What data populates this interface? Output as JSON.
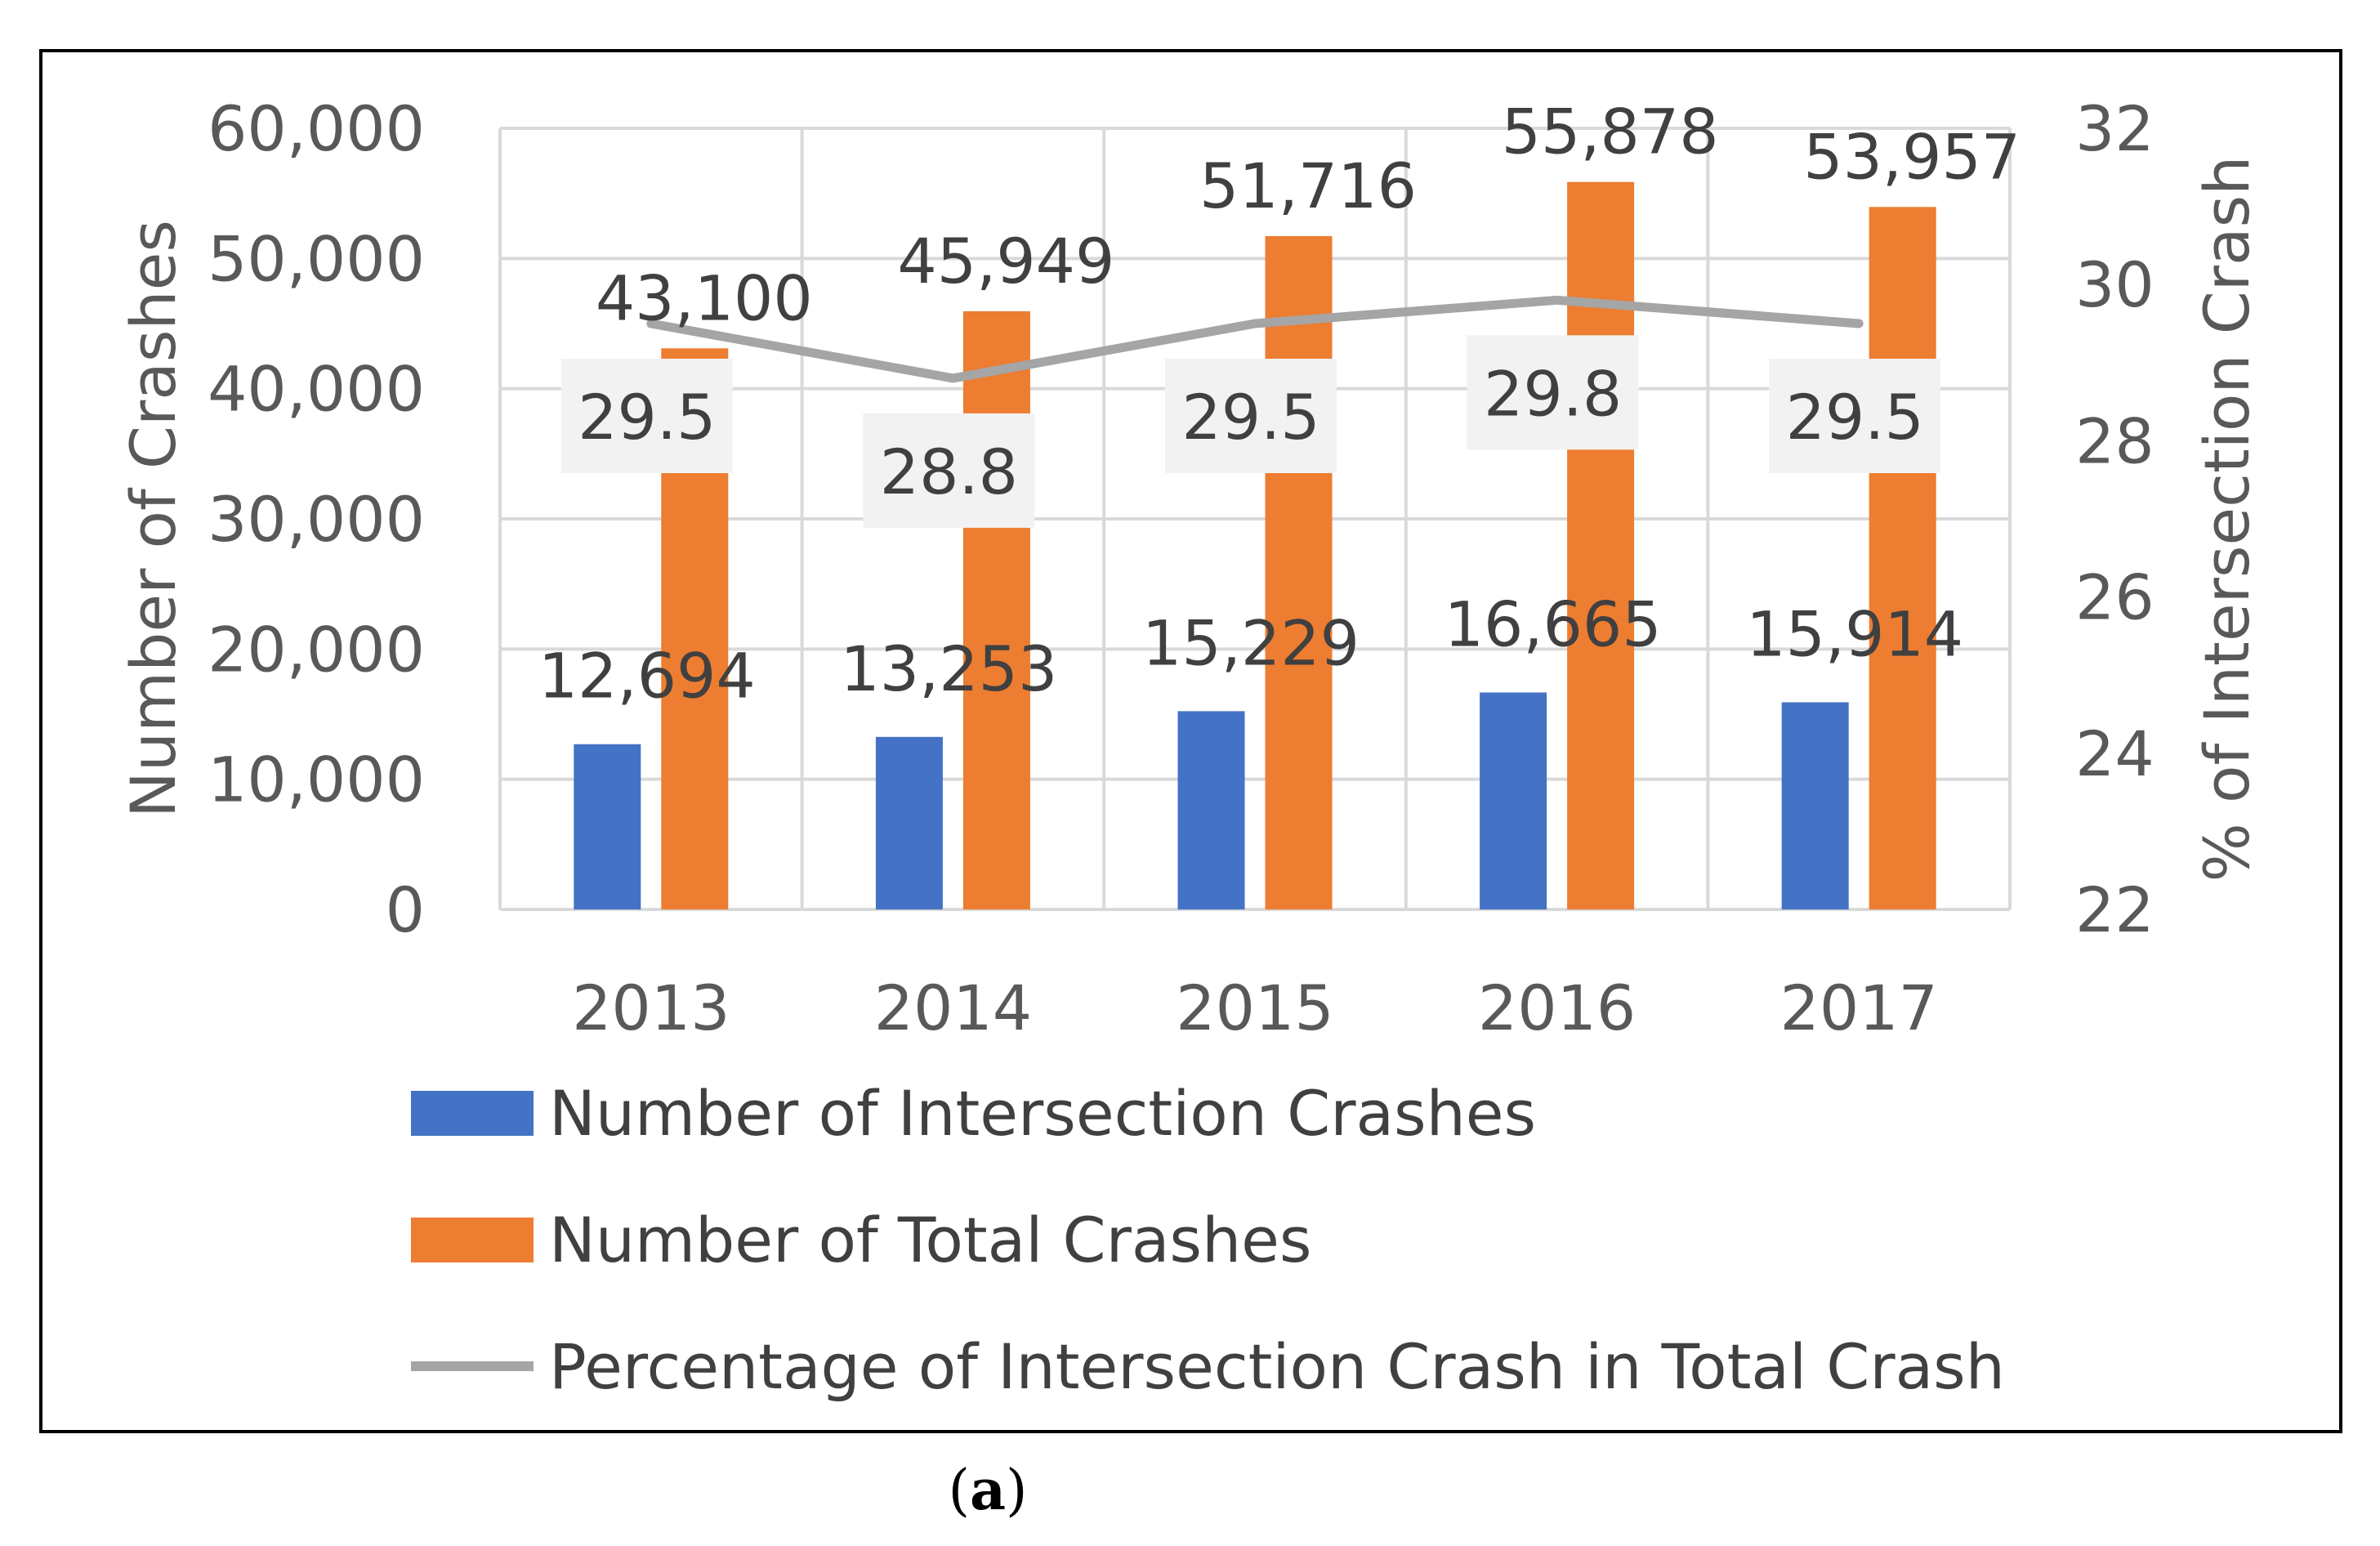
{
  "chart_data": {
    "type": "bar",
    "categories": [
      "2013",
      "2014",
      "2015",
      "2016",
      "2017"
    ],
    "series": [
      {
        "name": "Number of Intersection Crashes",
        "kind": "bar",
        "axis": "left",
        "color": "#4472C4",
        "values": [
          12694,
          13253,
          15229,
          16665,
          15914
        ],
        "labels": [
          "12,694",
          "13,253",
          "15,229",
          "16,665",
          "15,914"
        ]
      },
      {
        "name": "Number of Total Crashes",
        "kind": "bar",
        "axis": "left",
        "color": "#ED7D31",
        "values": [
          43100,
          45949,
          51716,
          55878,
          53957
        ],
        "labels": [
          "43,100",
          "45,949",
          "51,716",
          "55,878",
          "53,957"
        ]
      },
      {
        "name": "Percentage of Intersection Crash in Total Crash",
        "kind": "line",
        "axis": "right",
        "color": "#A5A5A5",
        "values": [
          29.5,
          28.8,
          29.5,
          29.8,
          29.5
        ],
        "labels": [
          "29.5",
          "28.8",
          "29.5",
          "29.8",
          "29.5"
        ]
      }
    ],
    "ylabel": "Number of Crashes",
    "y2label": "% of Intersection Crash",
    "ylim": [
      0,
      60000
    ],
    "y2lim": [
      22,
      32
    ],
    "yticks": [
      "0",
      "10,000",
      "20,000",
      "30,000",
      "40,000",
      "50,000",
      "60,000"
    ],
    "y2ticks": [
      "22",
      "24",
      "26",
      "28",
      "30",
      "32"
    ],
    "grid": true,
    "legend": "bottom"
  },
  "caption": {
    "open": "(",
    "letter": "a",
    "close": ")"
  }
}
